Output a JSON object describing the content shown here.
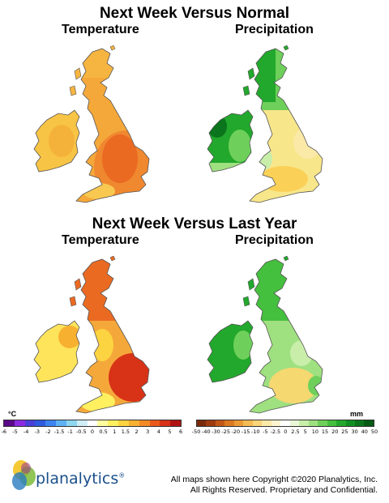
{
  "section1": {
    "title": "Next Week Versus Normal",
    "left_label": "Temperature",
    "right_label": "Precipitation"
  },
  "section2": {
    "title": "Next Week Versus Last Year",
    "left_label": "Temperature",
    "right_label": "Precipitation"
  },
  "legend_temp": {
    "unit": "°C",
    "ticks": [
      "-6",
      "-5",
      "-4",
      "-3",
      "-2",
      "-1.5",
      "-1",
      "-0.5",
      "0",
      "0.5",
      "1",
      "1.5",
      "2",
      "3",
      "4",
      "5",
      "6"
    ],
    "colors": [
      "#5a0a8a",
      "#8a2be2",
      "#4b3fd9",
      "#2f5be0",
      "#3e84f0",
      "#5fb3f5",
      "#8fd6f0",
      "#cfeef7",
      "#ffffff",
      "#ffffa0",
      "#fff060",
      "#fcd340",
      "#f8b030",
      "#f38a25",
      "#ea5a1c",
      "#d83217",
      "#b01212"
    ]
  },
  "legend_precip": {
    "unit": "mm",
    "ticks": [
      "-50",
      "-40",
      "-30",
      "-25",
      "-20",
      "-15",
      "-10",
      "-5",
      "-2.5",
      "0",
      "2.5",
      "5",
      "10",
      "15",
      "20",
      "25",
      "30",
      "40",
      "50"
    ],
    "colors": [
      "#7a2a0a",
      "#9e3c10",
      "#c25818",
      "#dc7a22",
      "#ec9a35",
      "#f5bb55",
      "#fad57a",
      "#fde9a8",
      "#fff6d0",
      "#ffffff",
      "#eaf8d8",
      "#c9eeaa",
      "#9fe080",
      "#6ed05a",
      "#44bf3e",
      "#22a82c",
      "#118f23",
      "#0a751c",
      "#055a14"
    ]
  },
  "copyright": {
    "line1": "All maps shown here Copyright ©2020 Planalytics, Inc.",
    "line2": "All Rights Reserved. Proprietary and Confidential."
  },
  "logo": {
    "text": "planalytics",
    "mark": "®"
  },
  "colors": {
    "sea": "#ffffff",
    "border": "#555555"
  }
}
